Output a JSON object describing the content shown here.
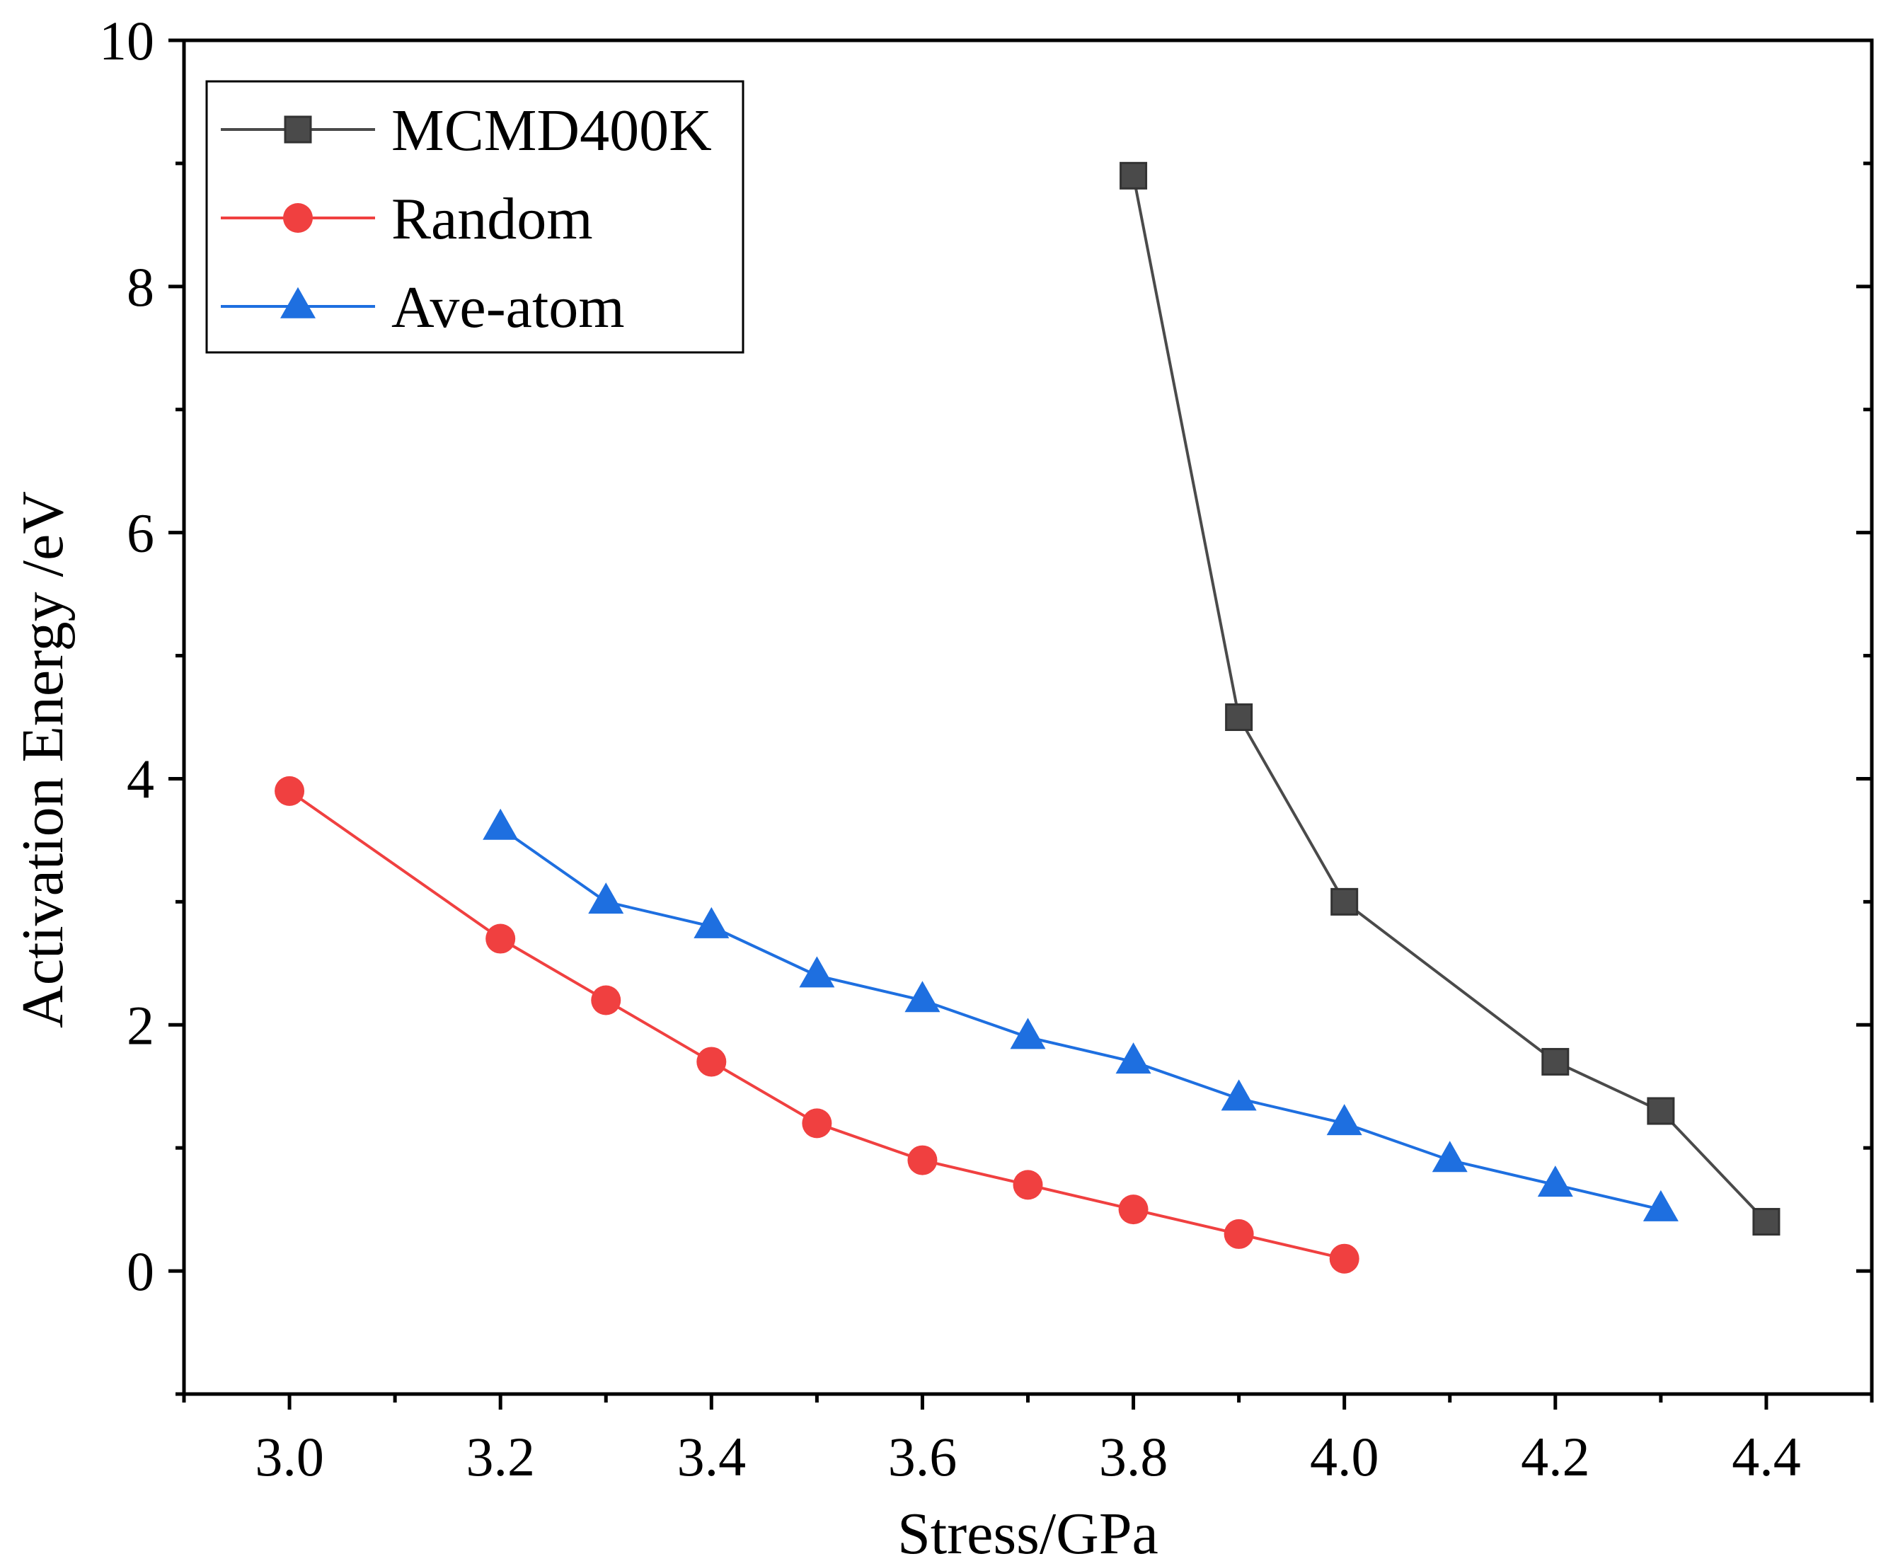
{
  "chart_data": {
    "type": "line",
    "title": "",
    "xlabel": "Stress/GPa",
    "ylabel": "Activation Energy /eV",
    "xlim": [
      2.9,
      4.5
    ],
    "ylim": [
      -1,
      10
    ],
    "x_ticks": [
      3.0,
      3.2,
      3.4,
      3.6,
      3.8,
      4.0,
      4.2,
      4.4
    ],
    "x_tick_labels": [
      "3.0",
      "3.2",
      "3.4",
      "3.6",
      "3.8",
      "4.0",
      "4.2",
      "4.4"
    ],
    "x_minor_ticks": [
      2.9,
      3.1,
      3.3,
      3.5,
      3.7,
      3.9,
      4.1,
      4.3,
      4.5
    ],
    "y_ticks": [
      0,
      2,
      4,
      6,
      8,
      10
    ],
    "y_tick_labels": [
      "0",
      "2",
      "4",
      "6",
      "8",
      "10"
    ],
    "y_minor_ticks": [
      -1,
      1,
      3,
      5,
      7,
      9
    ],
    "grid": false,
    "legend_position": "top-left",
    "series": [
      {
        "name": "MCMD400K",
        "color": "#4a4a4a",
        "marker": "square",
        "x": [
          3.8,
          3.9,
          4.0,
          4.2,
          4.3,
          4.4
        ],
        "y": [
          8.9,
          4.5,
          3.0,
          1.7,
          1.3,
          0.4
        ]
      },
      {
        "name": "Random",
        "color": "#f04040",
        "marker": "circle",
        "x": [
          3.0,
          3.2,
          3.3,
          3.4,
          3.5,
          3.6,
          3.7,
          3.8,
          3.9,
          4.0
        ],
        "y": [
          3.9,
          2.7,
          2.2,
          1.7,
          1.2,
          0.9,
          0.7,
          0.5,
          0.3,
          0.1
        ]
      },
      {
        "name": "Ave-atom",
        "color": "#1e6fe0",
        "marker": "triangle",
        "x": [
          3.2,
          3.3,
          3.4,
          3.5,
          3.6,
          3.7,
          3.8,
          3.9,
          4.0,
          4.1,
          4.2,
          4.3
        ],
        "y": [
          3.6,
          3.0,
          2.8,
          2.4,
          2.2,
          1.9,
          1.7,
          1.4,
          1.2,
          0.9,
          0.7,
          0.5
        ]
      }
    ]
  }
}
